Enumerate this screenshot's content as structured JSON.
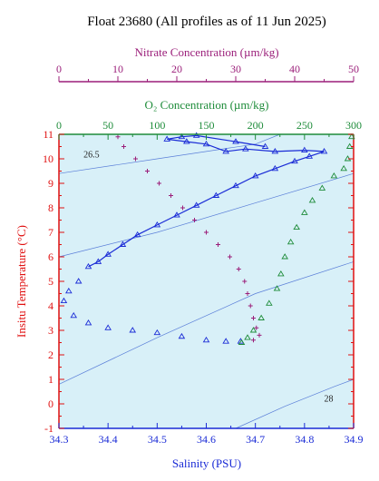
{
  "chart_data": {
    "type": "scatter",
    "title": "Float 23680  (All profiles as of 11 Jun 2025)",
    "xlabel": "Salinity (PSU)",
    "ylabel": "Insitu Temperature (°C)",
    "xlim": [
      34.3,
      34.9
    ],
    "ylim": [
      -1,
      11
    ],
    "xticks": [
      "34.3",
      "34.4",
      "34.5",
      "34.6",
      "34.7",
      "34.8",
      "34.9"
    ],
    "yticks": [
      "-1",
      "0",
      "1",
      "2",
      "3",
      "4",
      "5",
      "6",
      "7",
      "8",
      "9",
      "10",
      "11"
    ],
    "oxygen_axis": {
      "label": "O₂ Concentration (µm/kg)",
      "range": [
        0,
        300
      ],
      "ticks": [
        "0",
        "50",
        "100",
        "150",
        "200",
        "250",
        "300"
      ]
    },
    "nitrate_axis": {
      "label": "Nitrate Concentration (µm/kg)",
      "range": [
        0,
        50
      ],
      "ticks": [
        "0",
        "10",
        "20",
        "30",
        "40",
        "50"
      ]
    },
    "isopycnal_labels": [
      "26.5",
      "28"
    ],
    "colors": {
      "background": "#d8f0f8",
      "salinity": "#1a2bd6",
      "temperature": "#e01010",
      "oxygen": "#1e8c3a",
      "nitrate": "#9b1f7a",
      "isopycnal": "#5b7fd8"
    },
    "series": [
      {
        "name": "Salinity",
        "marker": "triangle",
        "points": [
          [
            34.36,
            5.6
          ],
          [
            34.38,
            5.8
          ],
          [
            34.4,
            6.1
          ],
          [
            34.43,
            6.5
          ],
          [
            34.46,
            6.9
          ],
          [
            34.5,
            7.3
          ],
          [
            34.54,
            7.7
          ],
          [
            34.58,
            8.1
          ],
          [
            34.62,
            8.5
          ],
          [
            34.66,
            8.9
          ],
          [
            34.7,
            9.3
          ],
          [
            34.74,
            9.6
          ],
          [
            34.78,
            9.9
          ],
          [
            34.81,
            10.1
          ],
          [
            34.84,
            10.3
          ],
          [
            34.8,
            10.35
          ],
          [
            34.74,
            10.3
          ],
          [
            34.68,
            10.4
          ],
          [
            34.64,
            10.3
          ],
          [
            34.6,
            10.6
          ],
          [
            34.56,
            10.7
          ],
          [
            34.52,
            10.8
          ],
          [
            34.55,
            10.9
          ],
          [
            34.58,
            10.95
          ],
          [
            34.66,
            10.7
          ],
          [
            34.72,
            10.5
          ],
          [
            34.34,
            5.0
          ],
          [
            34.32,
            4.6
          ],
          [
            34.31,
            4.2
          ],
          [
            34.33,
            3.6
          ],
          [
            34.36,
            3.3
          ],
          [
            34.4,
            3.1
          ],
          [
            34.45,
            3.0
          ],
          [
            34.5,
            2.9
          ],
          [
            34.55,
            2.75
          ],
          [
            34.6,
            2.6
          ],
          [
            34.64,
            2.55
          ],
          [
            34.67,
            2.55
          ]
        ]
      },
      {
        "name": "Oxygen",
        "marker": "triangle",
        "points": [
          [
            186,
            2.5
          ],
          [
            192,
            2.7
          ],
          [
            198,
            3.0
          ],
          [
            206,
            3.5
          ],
          [
            214,
            4.1
          ],
          [
            222,
            4.7
          ],
          [
            226,
            5.3
          ],
          [
            230,
            6.0
          ],
          [
            236,
            6.6
          ],
          [
            242,
            7.2
          ],
          [
            250,
            7.8
          ],
          [
            258,
            8.3
          ],
          [
            268,
            8.8
          ],
          [
            280,
            9.3
          ],
          [
            290,
            9.6
          ],
          [
            294,
            10.0
          ],
          [
            296,
            10.5
          ],
          [
            298,
            10.9
          ]
        ]
      },
      {
        "name": "Nitrate",
        "marker": "plus",
        "points": [
          [
            10,
            10.9
          ],
          [
            11,
            10.5
          ],
          [
            13,
            10.0
          ],
          [
            15,
            9.5
          ],
          [
            17,
            9.0
          ],
          [
            19,
            8.5
          ],
          [
            21,
            8.0
          ],
          [
            23,
            7.5
          ],
          [
            25,
            7.0
          ],
          [
            27,
            6.5
          ],
          [
            29,
            6.0
          ],
          [
            30.5,
            5.5
          ],
          [
            31.5,
            5.0
          ],
          [
            32,
            4.5
          ],
          [
            32.5,
            4.0
          ],
          [
            33,
            3.5
          ],
          [
            33.5,
            3.1
          ],
          [
            34,
            2.8
          ],
          [
            33,
            2.6
          ]
        ]
      }
    ]
  }
}
